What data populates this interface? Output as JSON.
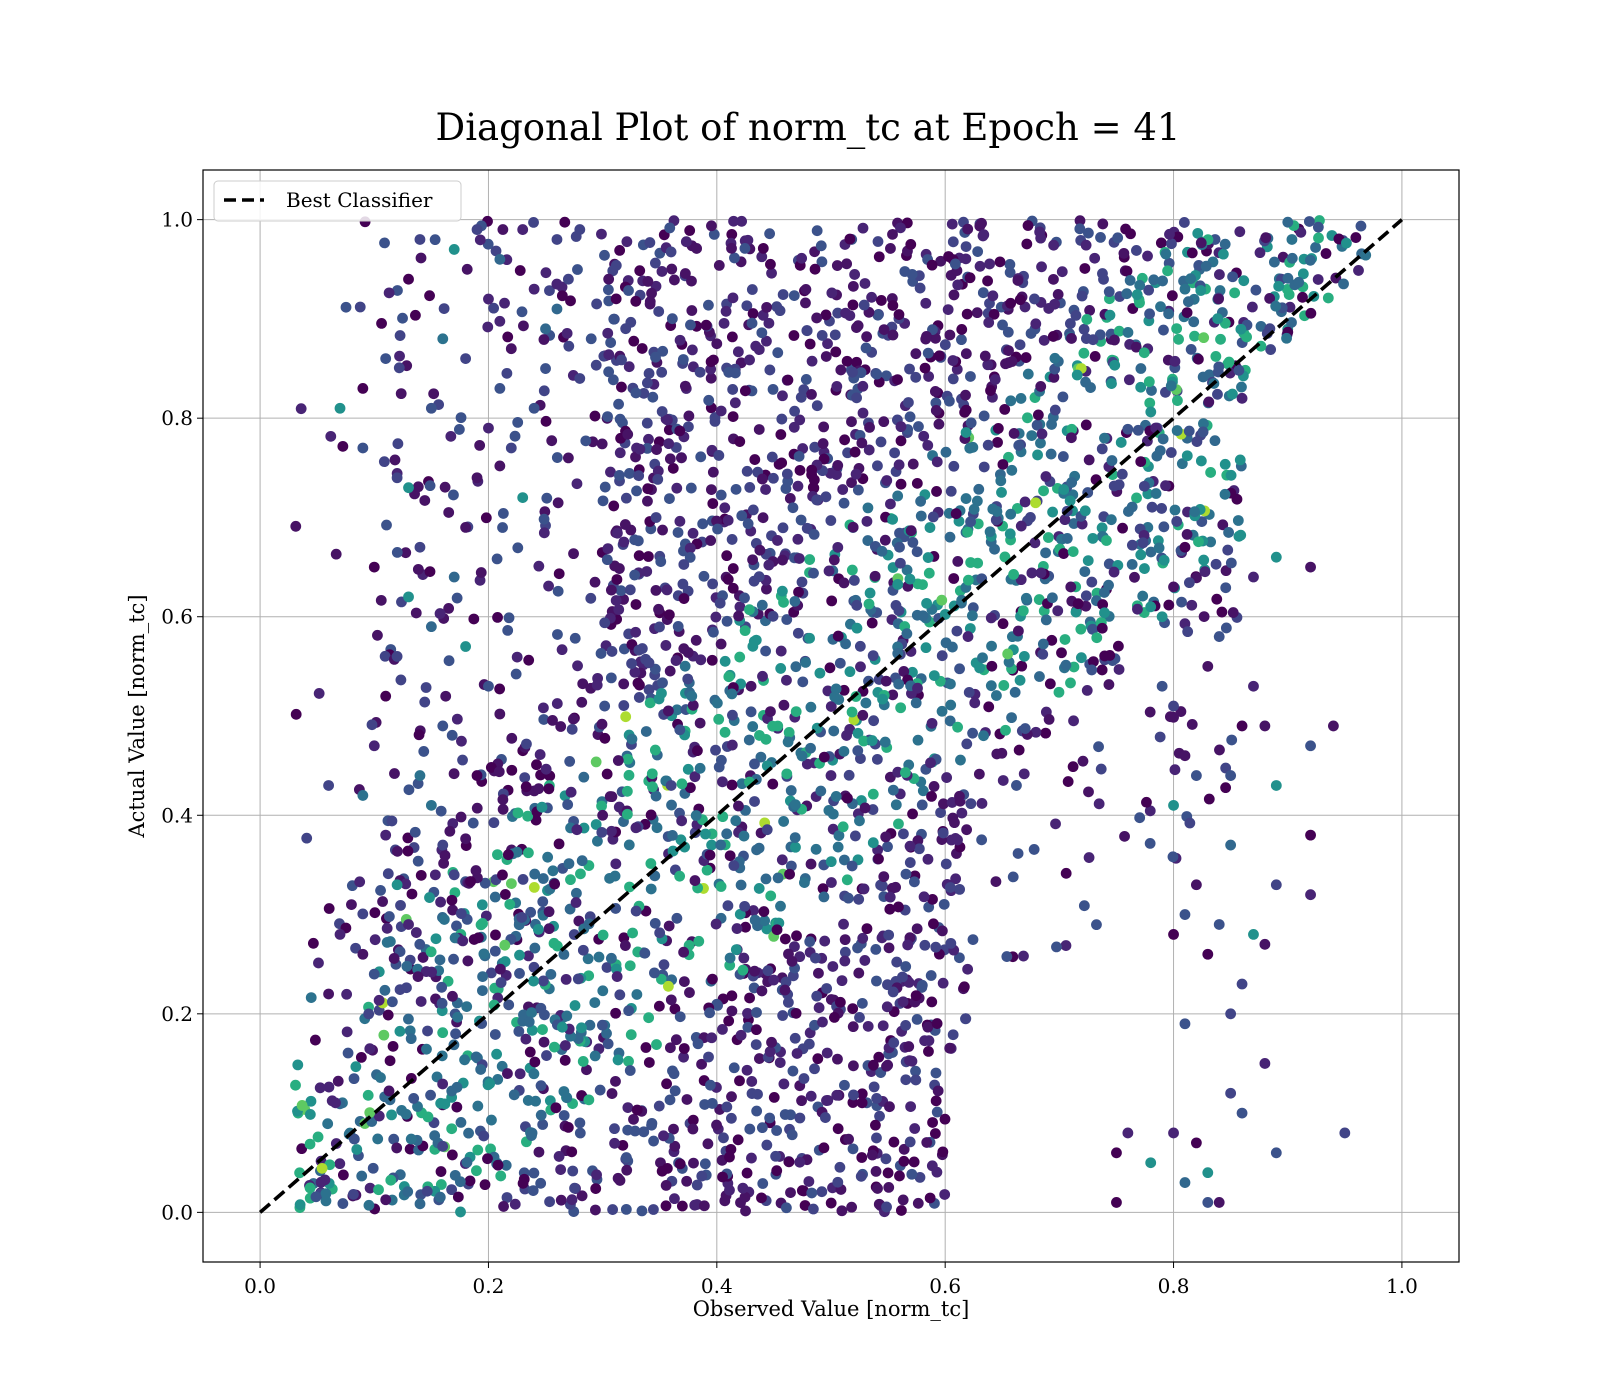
{
  "chart_data": {
    "type": "scatter",
    "title": "Diagonal Plot of norm_tc at Epoch = 41",
    "xlabel": "Observed Value [norm_tc]",
    "ylabel": "Actual Value [norm_tc]",
    "xlim": [
      -0.05,
      1.05
    ],
    "ylim": [
      -0.05,
      1.05
    ],
    "xticks": [
      0.0,
      0.2,
      0.4,
      0.6,
      0.8,
      1.0
    ],
    "yticks": [
      0.0,
      0.2,
      0.4,
      0.6,
      0.8,
      1.0
    ],
    "xtick_labels": [
      "0.0",
      "0.2",
      "0.4",
      "0.6",
      "0.8",
      "1.0"
    ],
    "ytick_labels": [
      "0.0",
      "0.2",
      "0.4",
      "0.6",
      "0.8",
      "1.0"
    ],
    "grid": true,
    "colormap": "viridis",
    "legend": {
      "position": "top-left",
      "entries": [
        {
          "label": "Best Classifier",
          "style": "dashed",
          "color": "#000000"
        }
      ]
    },
    "reference_line": {
      "name": "Best Classifier",
      "x": [
        0.0,
        1.0
      ],
      "y": [
        0.0,
        1.0
      ],
      "style": "dashed",
      "color": "#000000"
    },
    "point_colors": [
      "#440154",
      "#471365",
      "#482475",
      "#414487",
      "#3b528b",
      "#31688e",
      "#2c728e",
      "#21918c",
      "#28ae80",
      "#5ec962",
      "#addc30"
    ],
    "series": [
      {
        "points": [
          [
            0.07,
            0.81
          ],
          [
            0.06,
            0.43
          ],
          [
            0.06,
            0.22
          ],
          [
            0.09,
            0.83
          ],
          [
            0.09,
            0.77
          ],
          [
            0.1,
            0.65
          ],
          [
            0.11,
            0.86
          ],
          [
            0.12,
            0.74
          ],
          [
            0.13,
            0.94
          ],
          [
            0.13,
            0.73
          ],
          [
            0.14,
            0.98
          ],
          [
            0.15,
            0.81
          ],
          [
            0.16,
            0.88
          ],
          [
            0.17,
            0.97
          ],
          [
            0.18,
            0.86
          ],
          [
            0.19,
            0.99
          ],
          [
            0.2,
            0.92
          ],
          [
            0.21,
            0.96
          ],
          [
            0.22,
            0.87
          ],
          [
            0.23,
            0.99
          ],
          [
            0.24,
            0.93
          ],
          [
            0.25,
            0.89
          ],
          [
            0.26,
            0.98
          ],
          [
            0.27,
            0.94
          ],
          [
            0.28,
            0.99
          ],
          [
            0.12,
            0.56
          ],
          [
            0.11,
            0.52
          ],
          [
            0.13,
            0.62
          ],
          [
            0.14,
            0.67
          ],
          [
            0.15,
            0.59
          ],
          [
            0.16,
            0.49
          ],
          [
            0.17,
            0.64
          ],
          [
            0.18,
            0.57
          ],
          [
            0.19,
            0.44
          ],
          [
            0.2,
            0.53
          ],
          [
            0.1,
            0.47
          ],
          [
            0.09,
            0.42
          ],
          [
            0.11,
            0.38
          ],
          [
            0.12,
            0.33
          ],
          [
            0.13,
            0.29
          ],
          [
            0.08,
            0.31
          ],
          [
            0.07,
            0.28
          ],
          [
            0.09,
            0.26
          ],
          [
            0.1,
            0.24
          ],
          [
            0.14,
            0.44
          ],
          [
            0.15,
            0.41
          ],
          [
            0.16,
            0.37
          ],
          [
            0.17,
            0.34
          ],
          [
            0.18,
            0.69
          ],
          [
            0.19,
            0.74
          ],
          [
            0.2,
            0.79
          ],
          [
            0.21,
            0.83
          ],
          [
            0.22,
            0.77
          ],
          [
            0.23,
            0.72
          ],
          [
            0.24,
            0.81
          ],
          [
            0.25,
            0.85
          ],
          [
            0.26,
            0.91
          ],
          [
            0.27,
            0.76
          ],
          [
            0.28,
            0.84
          ],
          [
            0.29,
            0.88
          ],
          [
            0.5,
            0.44
          ],
          [
            0.44,
            0.54
          ],
          [
            0.43,
            0.53
          ],
          [
            0.3,
            0.4
          ],
          [
            0.36,
            0.43
          ],
          [
            0.62,
            0.58
          ],
          [
            0.56,
            0.67
          ],
          [
            0.71,
            0.63
          ],
          [
            0.81,
            0.93
          ],
          [
            0.81,
            0.67
          ],
          [
            0.86,
            0.82
          ],
          [
            0.85,
            0.2
          ],
          [
            0.88,
            0.15
          ],
          [
            0.83,
            0.01
          ],
          [
            0.84,
            0.01
          ],
          [
            0.89,
            0.06
          ],
          [
            0.95,
            0.08
          ],
          [
            0.92,
            0.32
          ],
          [
            0.92,
            0.38
          ],
          [
            0.89,
            0.33
          ],
          [
            0.89,
            0.43
          ],
          [
            0.92,
            0.47
          ],
          [
            0.94,
            0.49
          ],
          [
            0.85,
            0.44
          ],
          [
            0.86,
            0.49
          ],
          [
            0.87,
            0.53
          ],
          [
            0.88,
            0.49
          ],
          [
            0.89,
            0.66
          ],
          [
            0.92,
            0.65
          ],
          [
            0.87,
            0.64
          ],
          [
            0.75,
            0.01
          ],
          [
            0.75,
            0.06
          ],
          [
            0.76,
            0.08
          ],
          [
            0.78,
            0.05
          ],
          [
            0.8,
            0.08
          ],
          [
            0.81,
            0.03
          ],
          [
            0.82,
            0.07
          ],
          [
            0.83,
            0.04
          ],
          [
            0.85,
            0.12
          ],
          [
            0.86,
            0.1
          ],
          [
            0.8,
            0.28
          ],
          [
            0.81,
            0.3
          ],
          [
            0.82,
            0.33
          ],
          [
            0.83,
            0.26
          ],
          [
            0.84,
            0.29
          ],
          [
            0.85,
            0.37
          ],
          [
            0.86,
            0.23
          ],
          [
            0.87,
            0.28
          ],
          [
            0.88,
            0.27
          ],
          [
            0.81,
            0.19
          ],
          [
            0.8,
            0.41
          ],
          [
            0.81,
            0.46
          ],
          [
            0.82,
            0.44
          ],
          [
            0.83,
            0.55
          ],
          [
            0.84,
            0.58
          ],
          [
            0.8,
            0.51
          ],
          [
            0.79,
            0.53
          ],
          [
            0.78,
            0.61
          ],
          [
            0.79,
            0.6
          ],
          [
            0.8,
            0.63
          ]
        ]
      }
    ]
  }
}
